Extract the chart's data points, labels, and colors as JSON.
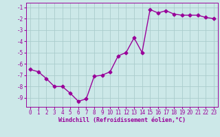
{
  "x": [
    0,
    1,
    2,
    3,
    4,
    5,
    6,
    7,
    8,
    9,
    10,
    11,
    12,
    13,
    14,
    15,
    16,
    17,
    18,
    19,
    20,
    21,
    22,
    23
  ],
  "y": [
    -6.5,
    -6.7,
    -7.3,
    -8.0,
    -8.0,
    -8.6,
    -9.3,
    -9.1,
    -7.1,
    -7.0,
    -6.7,
    -5.3,
    -5.0,
    -3.7,
    -5.0,
    -1.2,
    -1.5,
    -1.3,
    -1.6,
    -1.7,
    -1.7,
    -1.7,
    -1.9,
    -2.0
  ],
  "line_color": "#990099",
  "marker": "D",
  "markersize": 2.5,
  "linewidth": 1.0,
  "background_color": "#cce8e8",
  "grid_color": "#aacccc",
  "xlabel": "Windchill (Refroidissement éolien,°C)",
  "xlabel_color": "#990099",
  "xlabel_fontsize": 6.0,
  "tick_color": "#990099",
  "tick_fontsize": 5.5,
  "ylim": [
    -9.8,
    -0.6
  ],
  "xlim": [
    -0.5,
    23.5
  ],
  "yticks": [
    -9,
    -8,
    -7,
    -6,
    -5,
    -4,
    -3,
    -2,
    -1
  ],
  "xticks": [
    0,
    1,
    2,
    3,
    4,
    5,
    6,
    7,
    8,
    9,
    10,
    11,
    12,
    13,
    14,
    15,
    16,
    17,
    18,
    19,
    20,
    21,
    22,
    23
  ]
}
